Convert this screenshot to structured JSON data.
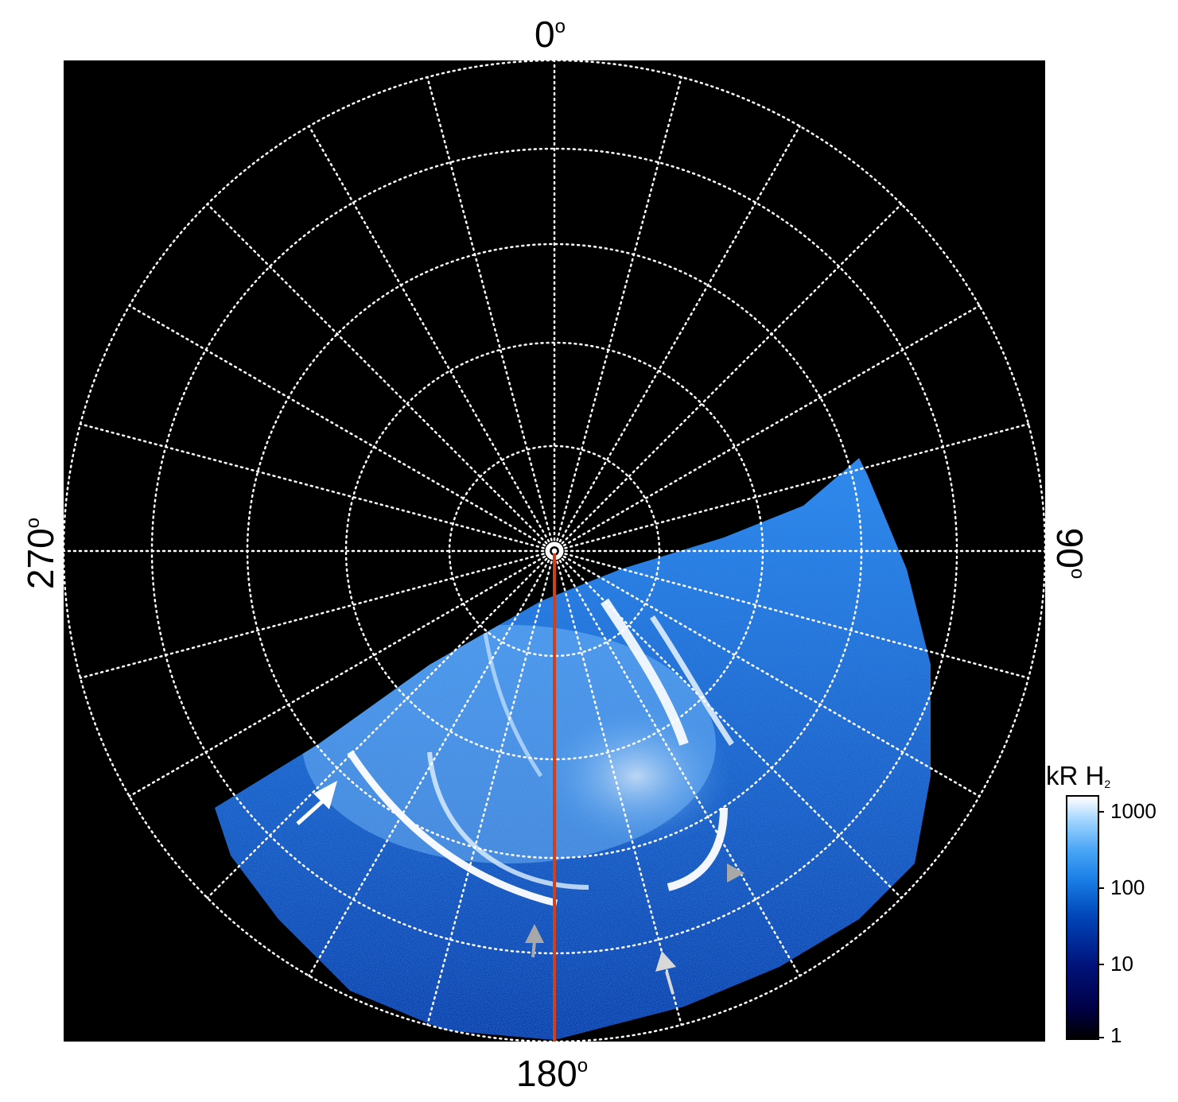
{
  "labels": {
    "top": "0",
    "right": "90",
    "bottom": "180",
    "left": "270",
    "degree_symbol": "o"
  },
  "colorbar": {
    "title": "kR H",
    "title_sub": "2",
    "ticks": [
      "1000",
      "100",
      "10",
      "1"
    ],
    "scale": "log"
  },
  "colors": {
    "background": "#000000",
    "grid": "#ffffff",
    "meridian_line": "#d0401a",
    "aurora_low": "#00127a",
    "aurora_mid": "#1a7fe6",
    "aurora_high": "#ffffff",
    "arrow_white": "#ffffff",
    "arrow_gray": "#a8a8a8"
  },
  "image": {
    "description_icons": [
      "polar-grid",
      "aurora-emission",
      "pointer-arrows"
    ]
  }
}
